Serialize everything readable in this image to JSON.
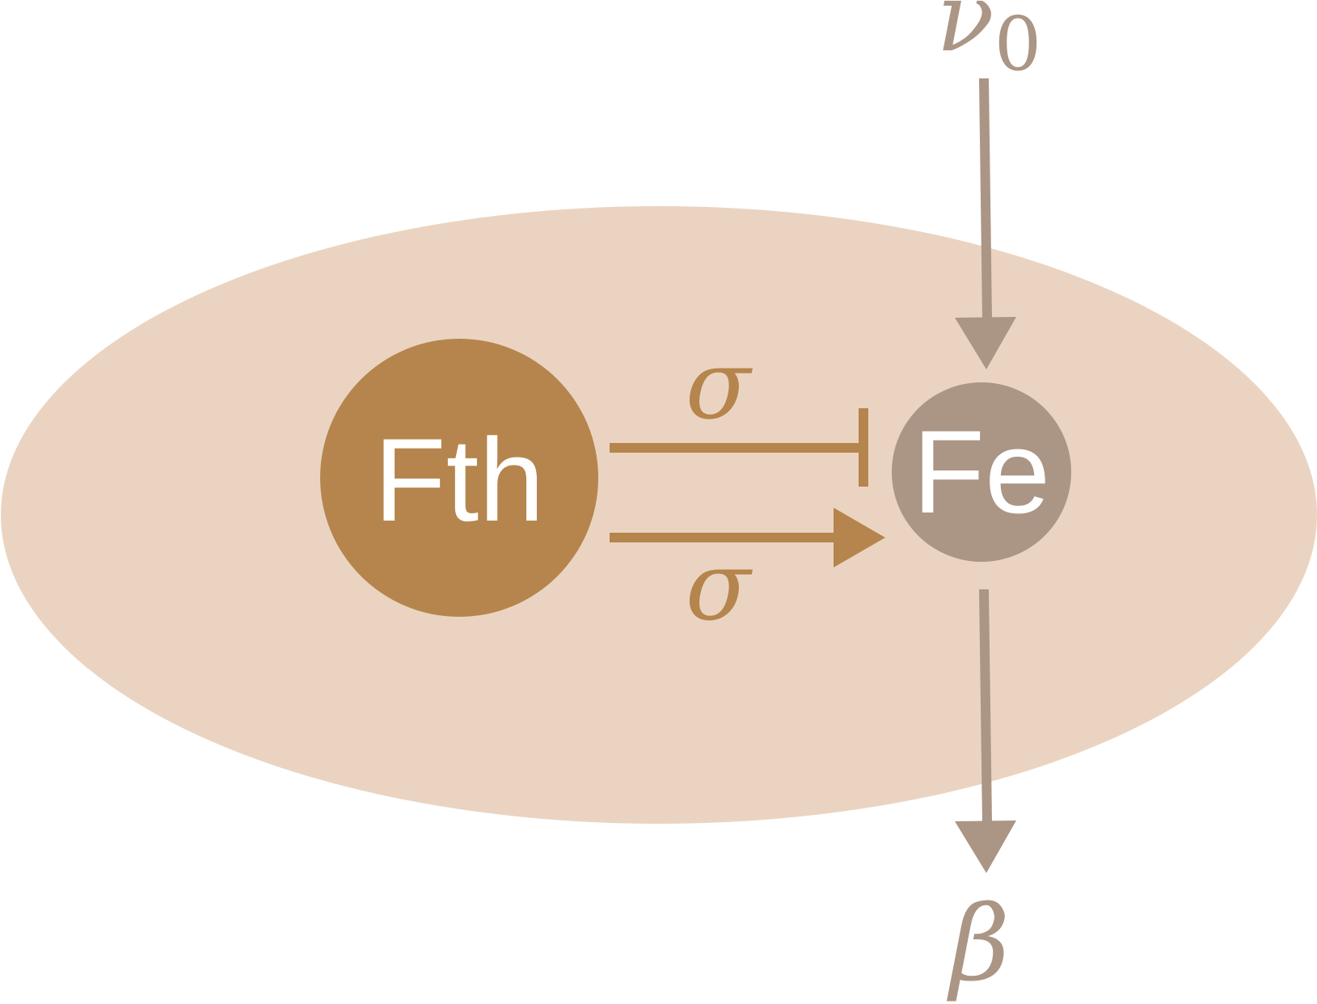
{
  "colors": {
    "background": "#ffffff",
    "compartment": "#ead4c1",
    "ferritin": "#b5854d",
    "iron": "#ab9585",
    "text": "#ffffff"
  },
  "nodes": {
    "ferritin": {
      "label": "Fth"
    },
    "iron": {
      "label": "Fe"
    }
  },
  "edges": {
    "influx": {
      "symbol": "ν",
      "subscript": "0"
    },
    "inhibition": {
      "symbol": "σ"
    },
    "activation": {
      "symbol": "σ"
    },
    "efflux": {
      "symbol": "β"
    }
  }
}
